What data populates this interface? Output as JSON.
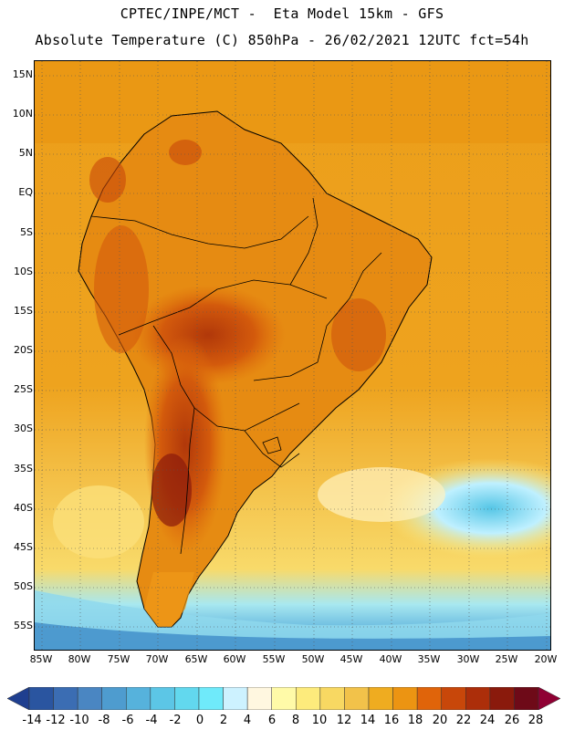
{
  "header": {
    "line1": "CPTEC/INPE/MCT -  Eta Model 15km - GFS",
    "line2": "Absolute Temperature (C) 850hPa - 26/02/2021 12UTC fct=54h"
  },
  "map": {
    "lat_labels": [
      "15N",
      "10N",
      "5N",
      "EQ",
      "5S",
      "10S",
      "15S",
      "20S",
      "25S",
      "30S",
      "35S",
      "40S",
      "45S",
      "50S",
      "55S"
    ],
    "lon_labels": [
      "85W",
      "80W",
      "75W",
      "70W",
      "65W",
      "60W",
      "55W",
      "50W",
      "45W",
      "40W",
      "35W",
      "30W",
      "25W",
      "20W"
    ],
    "features": [
      "continent-outline",
      "country-borders",
      "state-borders",
      "lat-lon-grid"
    ]
  },
  "colorbar": {
    "labels": [
      "-14",
      "-12",
      "-10",
      "-8",
      "-6",
      "-4",
      "-2",
      "0",
      "2",
      "4",
      "6",
      "8",
      "10",
      "12",
      "14",
      "16",
      "18",
      "20",
      "22",
      "24",
      "26",
      "28"
    ],
    "colors": [
      "#1f3f8f",
      "#2a55a0",
      "#3b6db3",
      "#4a86c2",
      "#4e9ccf",
      "#56b2dc",
      "#5cc6e6",
      "#62d8ee",
      "#6feafa",
      "#cdf2ff",
      "#fff7e0",
      "#fffaa8",
      "#fdeb7c",
      "#f8d862",
      "#f2c24a",
      "#efac20",
      "#ec9412",
      "#e0640a",
      "#c8470a",
      "#ac2e0a",
      "#8a1a0c",
      "#6e0a18",
      "#8f0033"
    ]
  }
}
